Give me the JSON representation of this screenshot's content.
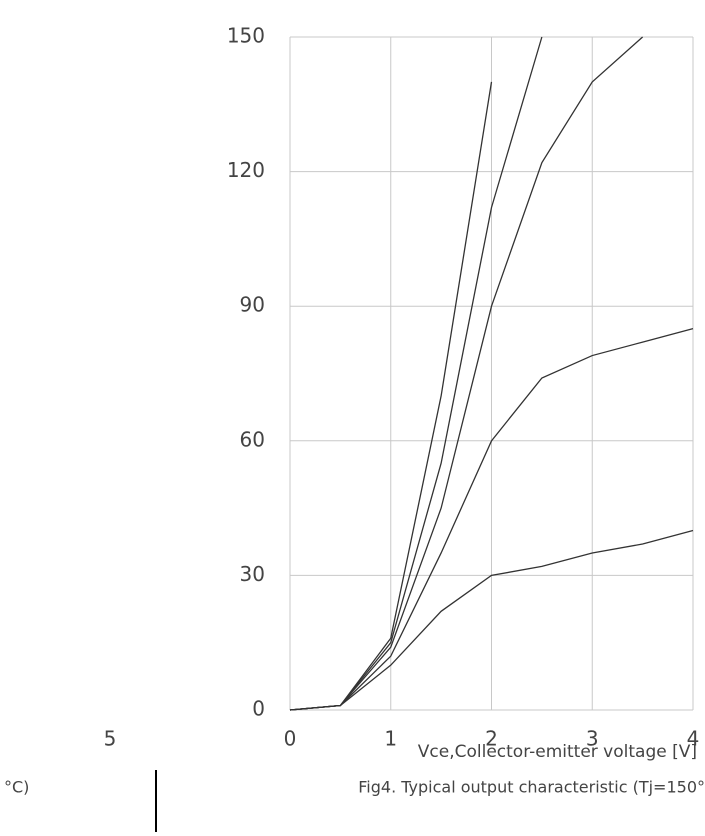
{
  "chart_data": {
    "type": "line",
    "x_label": "Vce,Collector-emitter voltage [V]",
    "caption": "Fig4. Typical output characteristic (Tj=150°",
    "x": [
      0,
      0.5,
      1,
      1.5,
      2,
      2.5,
      3,
      3.5,
      4
    ],
    "series": [
      {
        "color": "#333333",
        "values": [
          0,
          1,
          10,
          22,
          30,
          32,
          35,
          37,
          40
        ]
      },
      {
        "color": "#333333",
        "values": [
          0,
          1,
          12,
          35,
          60,
          74,
          79,
          82,
          85
        ]
      },
      {
        "color": "#333333",
        "values": [
          0,
          1,
          14,
          45,
          90,
          122,
          140,
          150,
          null
        ]
      },
      {
        "color": "#333333",
        "values": [
          0,
          1,
          15,
          55,
          112,
          150,
          null,
          null,
          null
        ]
      },
      {
        "color": "#333333",
        "values": [
          0,
          1,
          16,
          70,
          140,
          null,
          null,
          null,
          null
        ]
      }
    ],
    "xlim": [
      0,
      4
    ],
    "xticks": [
      0,
      1,
      2,
      3,
      4
    ],
    "ylim": [
      0,
      150
    ],
    "yticks": [
      0,
      30,
      60,
      90,
      120,
      150
    ],
    "grid": true
  },
  "fragments": [
    "5",
    "°C)"
  ]
}
